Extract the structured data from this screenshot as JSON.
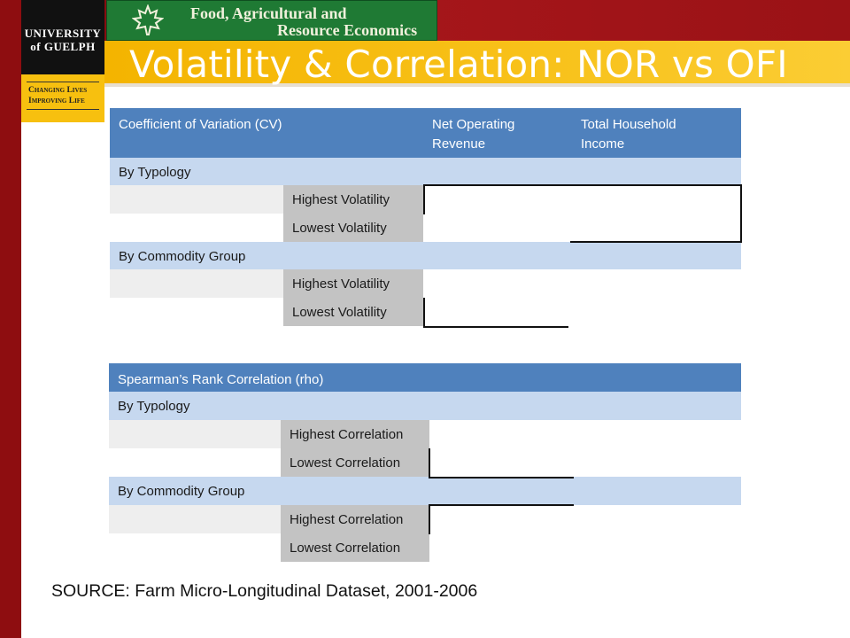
{
  "logo": {
    "line1": "UNIVERSITY",
    "line2": "of GUELPH",
    "tagline1": "Changing Lives",
    "tagline2": "Improving Life"
  },
  "banner": {
    "line1": "Food, Agricultural and",
    "line2": "Resource Economics"
  },
  "title": "Volatility & Correlation: NOR vs OFI",
  "cv_table": {
    "header": [
      "Coefficient of Variation (CV)",
      "Net Operating Revenue",
      "Total Household Income"
    ],
    "section1": "By Typology",
    "row_high": "Highest Volatility",
    "row_low": "Lowest Volatility",
    "section2": "By Commodity Group"
  },
  "rho_table": {
    "header": "Spearman’s Rank Correlation (rho)",
    "section1": "By Typology",
    "row_high": "Highest Correlation",
    "row_low": "Lowest Correlation",
    "section2": "By Commodity Group"
  },
  "source": "SOURCE: Farm Micro-Longitudinal Dataset, 2001-2006",
  "colors": {
    "maroon": "#8e0d10",
    "gold": "#f8c21b",
    "header_blue": "#4f81bd",
    "section_blue": "#c6d8ef",
    "label_gray": "#c3c3c3",
    "fare_green": "#1f7a34"
  }
}
